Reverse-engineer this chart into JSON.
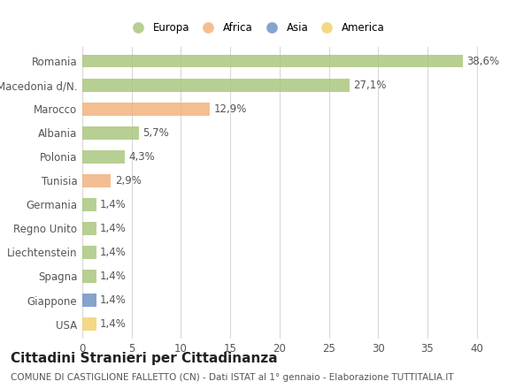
{
  "countries": [
    "Romania",
    "Macedonia d/N.",
    "Marocco",
    "Albania",
    "Polonia",
    "Tunisia",
    "Germania",
    "Regno Unito",
    "Liechtenstein",
    "Spagna",
    "Giappone",
    "USA"
  ],
  "values": [
    38.6,
    27.1,
    12.9,
    5.7,
    4.3,
    2.9,
    1.4,
    1.4,
    1.4,
    1.4,
    1.4,
    1.4
  ],
  "labels": [
    "38,6%",
    "27,1%",
    "12,9%",
    "5,7%",
    "4,3%",
    "2,9%",
    "1,4%",
    "1,4%",
    "1,4%",
    "1,4%",
    "1,4%",
    "1,4%"
  ],
  "colors": [
    "#a8c57a",
    "#a8c57a",
    "#f2b07a",
    "#a8c57a",
    "#a8c57a",
    "#f2b07a",
    "#a8c57a",
    "#a8c57a",
    "#a8c57a",
    "#a8c57a",
    "#6b8ec4",
    "#f2d06a"
  ],
  "legend_labels": [
    "Europa",
    "Africa",
    "Asia",
    "America"
  ],
  "legend_colors": [
    "#a8c57a",
    "#f2b07a",
    "#6b8ec4",
    "#f2d06a"
  ],
  "title": "Cittadini Stranieri per Cittadinanza",
  "subtitle": "COMUNE DI CASTIGLIONE FALLETTO (CN) - Dati ISTAT al 1° gennaio - Elaborazione TUTTITALIA.IT",
  "xlim": [
    0,
    42
  ],
  "xticks": [
    0,
    5,
    10,
    15,
    20,
    25,
    30,
    35,
    40
  ],
  "background_color": "#ffffff",
  "grid_color": "#d8d8d8",
  "bar_height": 0.55,
  "label_fontsize": 8.5,
  "tick_fontsize": 8.5,
  "title_fontsize": 11,
  "subtitle_fontsize": 7.5
}
